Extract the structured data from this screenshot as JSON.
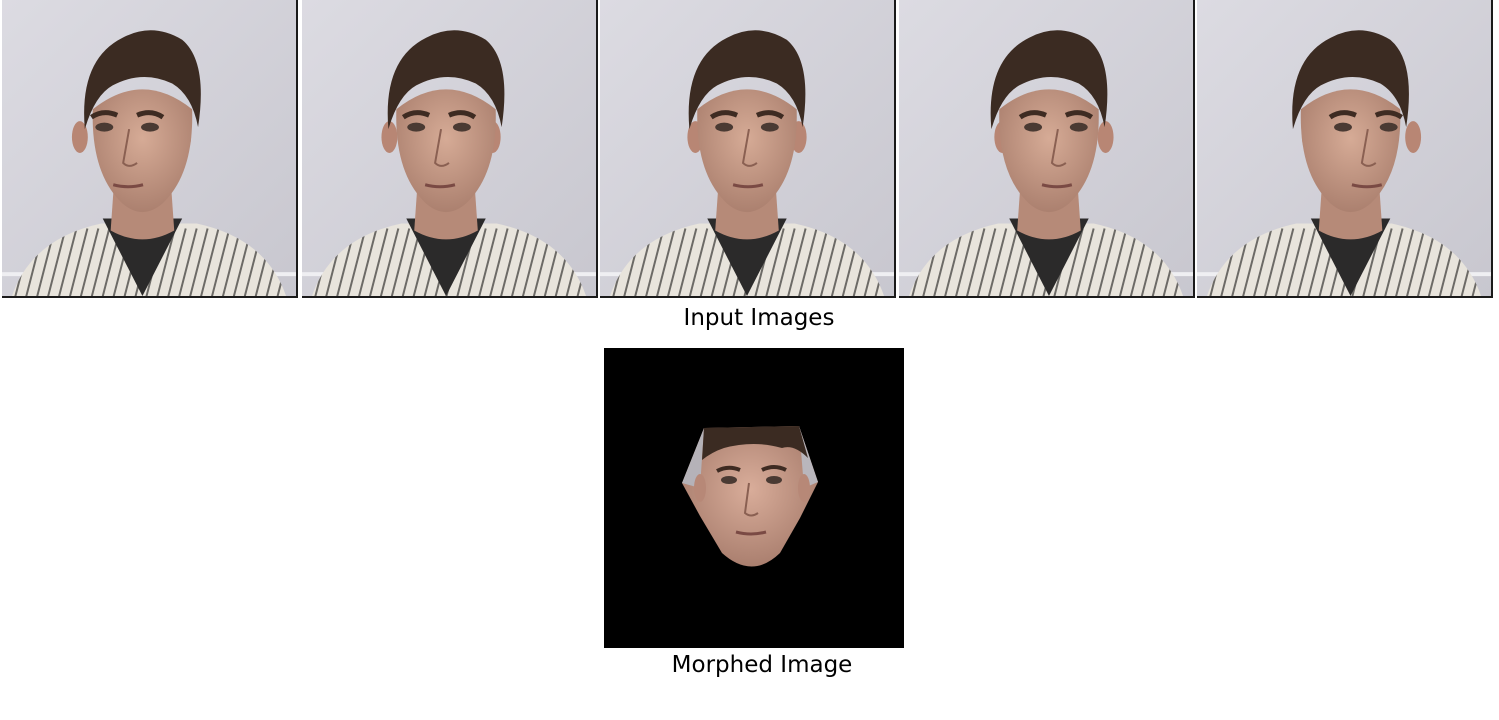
{
  "figure": {
    "input_caption": "Input Images",
    "morphed_caption": "Morphed Image"
  },
  "input_images": [
    {
      "pose": "head turned right"
    },
    {
      "pose": "slightly turned right"
    },
    {
      "pose": "frontal"
    },
    {
      "pose": "slightly turned left"
    },
    {
      "pose": "head turned left"
    }
  ],
  "colors": {
    "wall": "#d5d4dc",
    "hair": "#3b2b22",
    "skin": "#c99c88",
    "shirt_dark": "#2b2a2a",
    "shirt_light": "#e8e4dc",
    "morph_bg": "#000000"
  }
}
